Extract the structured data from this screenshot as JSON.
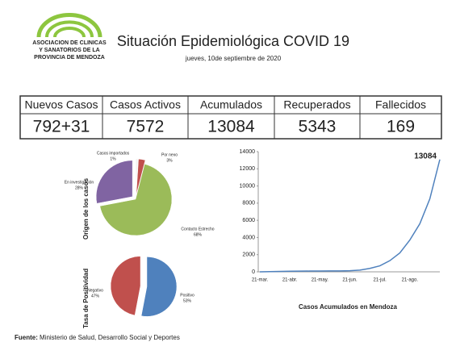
{
  "header": {
    "logo_lines": [
      "ASOCIACION DE CLINICAS",
      "Y SANATORIOS DE LA",
      "PROVINCIA DE MENDOZA"
    ],
    "title": "Situación Epidemiológica COVID 19",
    "date": "jueves, 10de septiembre de 2020"
  },
  "stats": {
    "headers": [
      "Nuevos Casos",
      "Casos Activos",
      "Acumulados",
      "Recuperados",
      "Fallecidos"
    ],
    "values": [
      "792+31",
      "7572",
      "13084",
      "5343",
      "169"
    ]
  },
  "chart_data": [
    {
      "type": "pie",
      "title": "Origen de los casos",
      "categories": [
        "Casos importados",
        "Por nexo",
        "Contacto Estrecho",
        "En investigación"
      ],
      "values": [
        1,
        3,
        68,
        28
      ],
      "value_labels": [
        "1%",
        "3%",
        "68%",
        "28%"
      ],
      "colors": [
        "#f2f2f2",
        "#c0504d",
        "#9bbb59",
        "#8064a2"
      ]
    },
    {
      "type": "pie",
      "title": "Tasa de Positividad",
      "categories": [
        "Positivo",
        "Negativo"
      ],
      "values": [
        53,
        47
      ],
      "value_labels": [
        "53%",
        "47%"
      ],
      "colors": [
        "#4f81bd",
        "#c0504d"
      ]
    },
    {
      "type": "line",
      "xlabel": "Casos Acumulados en Mendoza",
      "categories": [
        "21-mar.",
        null,
        null,
        "21-abr.",
        null,
        null,
        "21-may.",
        null,
        null,
        "21-jun.",
        null,
        null,
        "21-jul.",
        null,
        null,
        "21-ago.",
        null,
        null,
        null
      ],
      "series": [
        {
          "name": "Casos acumulados",
          "color": "#4f81bd",
          "values": [
            5,
            20,
            50,
            70,
            80,
            90,
            95,
            100,
            110,
            130,
            200,
            400,
            700,
            1300,
            2200,
            3700,
            5600,
            8500,
            13084
          ]
        }
      ],
      "ylim": [
        0,
        14000
      ],
      "yticks": [
        0,
        2000,
        4000,
        6000,
        8000,
        10000,
        12000,
        14000
      ]
    }
  ],
  "footer": {
    "source_label": "Fuente:",
    "source": "Ministerio de Salud, Desarrollo Social y Deportes"
  }
}
